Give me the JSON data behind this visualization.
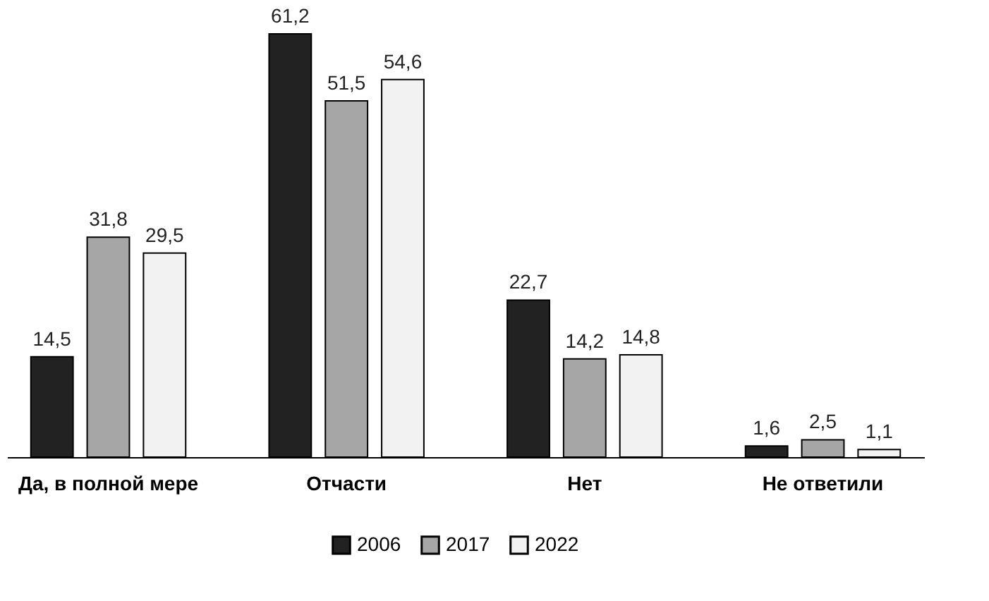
{
  "chart_data": {
    "type": "bar",
    "categories": [
      "Да, в полной мере",
      "Отчасти",
      "Нет",
      "Не ответили"
    ],
    "series": [
      {
        "name": "2006",
        "color": "#222222",
        "values": [
          14.5,
          61.2,
          22.7,
          1.6
        ],
        "value_labels": [
          "14,5",
          "61,2",
          "22,7",
          "1,6"
        ]
      },
      {
        "name": "2017",
        "color": "#a6a6a6",
        "values": [
          31.8,
          51.5,
          14.2,
          2.5
        ],
        "value_labels": [
          "31,8",
          "51,5",
          "14,2",
          "2,5"
        ]
      },
      {
        "name": "2022",
        "color": "#f2f2f2",
        "values": [
          29.5,
          54.6,
          14.8,
          1.1
        ],
        "value_labels": [
          "29,5",
          "54,6",
          "14,8",
          "1,1"
        ]
      }
    ],
    "legend": "bottom",
    "grid": false
  }
}
